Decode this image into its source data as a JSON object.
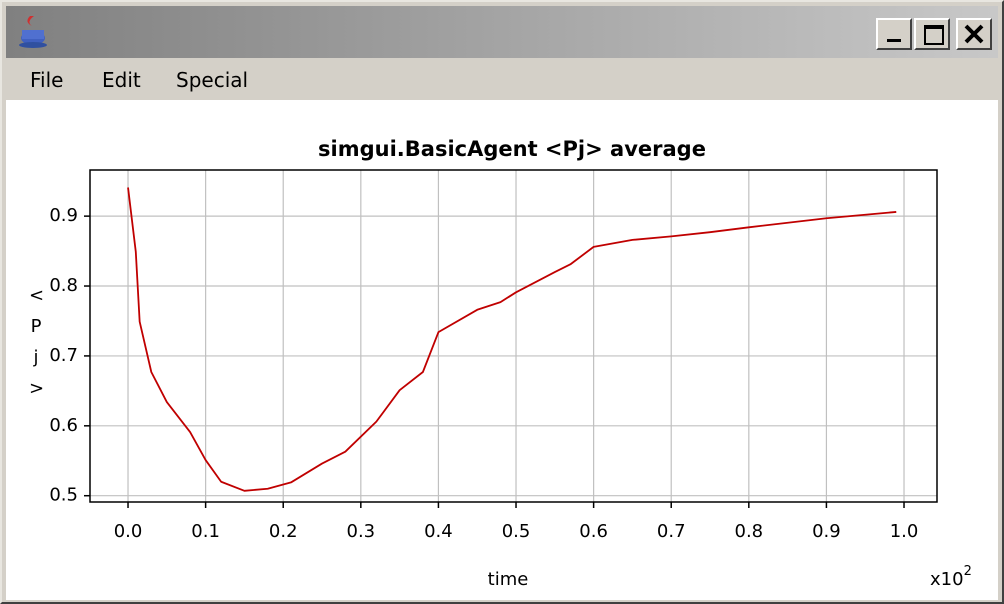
{
  "window": {
    "menu": [
      "File",
      "Edit",
      "Special"
    ]
  },
  "chart_data": {
    "type": "line",
    "title": "simgui.BasicAgent <Pj> average",
    "xlabel": "time",
    "ylabel": "<Pj>",
    "x_multiplier": "x10",
    "x_multiplier_exp": "2",
    "x": [
      0.0,
      0.01,
      0.015,
      0.03,
      0.05,
      0.08,
      0.1,
      0.12,
      0.15,
      0.18,
      0.21,
      0.25,
      0.28,
      0.32,
      0.35,
      0.38,
      0.4,
      0.45,
      0.48,
      0.5,
      0.55,
      0.57,
      0.6,
      0.65,
      0.7,
      0.75,
      0.8,
      0.9,
      0.99
    ],
    "values": [
      0.941,
      0.849,
      0.749,
      0.677,
      0.634,
      0.591,
      0.551,
      0.52,
      0.507,
      0.51,
      0.519,
      0.546,
      0.563,
      0.606,
      0.651,
      0.677,
      0.734,
      0.766,
      0.777,
      0.791,
      0.82,
      0.831,
      0.856,
      0.866,
      0.871,
      0.877,
      0.884,
      0.897,
      0.906
    ],
    "color": "#c00000",
    "xlim": [
      -0.049,
      1.0425
    ],
    "ylim": [
      0.491,
      0.966
    ],
    "xticks": [
      {
        "value": 0,
        "label": "0.0"
      },
      0.1,
      0.2,
      0.3,
      0.4,
      0.5,
      0.6,
      0.7,
      0.8,
      0.9,
      {
        "value": 1,
        "label": "1.0"
      }
    ],
    "yticks": [
      0.5,
      0.6,
      0.7,
      0.8,
      0.9
    ],
    "grid": true
  }
}
